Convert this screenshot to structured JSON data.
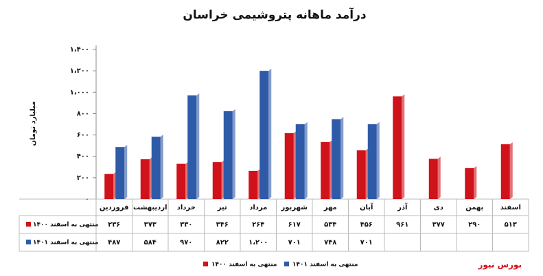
{
  "chart_data": {
    "type": "bar",
    "title": "درآمد ماهانه پتروشیمی خراسان",
    "y_label": "میلیارد تومان",
    "categories": [
      "فروردین",
      "اردیبهشت",
      "خرداد",
      "تیر",
      "مرداد",
      "شهریور",
      "مهر",
      "آبان",
      "آذر",
      "دی",
      "بهمن",
      "اسفند"
    ],
    "series": [
      {
        "name": "منتهی به اسفند ۱۴۰۰",
        "color": "#d0121b",
        "values": [
          236,
          373,
          330,
          346,
          264,
          617,
          534,
          456,
          961,
          377,
          290,
          513
        ],
        "value_labels": [
          "۲۳۶",
          "۳۷۳",
          "۳۳۰",
          "۳۴۶",
          "۲۶۴",
          "۶۱۷",
          "۵۳۴",
          "۴۵۶",
          "۹۶۱",
          "۳۷۷",
          "۲۹۰",
          "۵۱۳"
        ]
      },
      {
        "name": "منتهی به اسفند ۱۴۰۱",
        "color": "#2f5aa8",
        "values": [
          487,
          584,
          970,
          822,
          1200,
          701,
          748,
          701,
          null,
          null,
          null,
          null
        ],
        "value_labels": [
          "۴۸۷",
          "۵۸۴",
          "۹۷۰",
          "۸۲۲",
          "۱،۲۰۰",
          "۷۰۱",
          "۷۴۸",
          "۷۰۱",
          null,
          null,
          null,
          null
        ]
      }
    ],
    "ylim": [
      0,
      1400
    ],
    "yticks": [
      {
        "value": 0,
        "label": "۰"
      },
      {
        "value": 200,
        "label": "۲۰۰"
      },
      {
        "value": 400,
        "label": "۴۰۰"
      },
      {
        "value": 600,
        "label": "۶۰۰"
      },
      {
        "value": 800,
        "label": "۸۰۰"
      },
      {
        "value": 1000,
        "label": "۱،۰۰۰"
      },
      {
        "value": 1200,
        "label": "۱،۲۰۰"
      },
      {
        "value": 1400,
        "label": "۱،۴۰۰"
      }
    ],
    "source": "بورس نیوز"
  }
}
